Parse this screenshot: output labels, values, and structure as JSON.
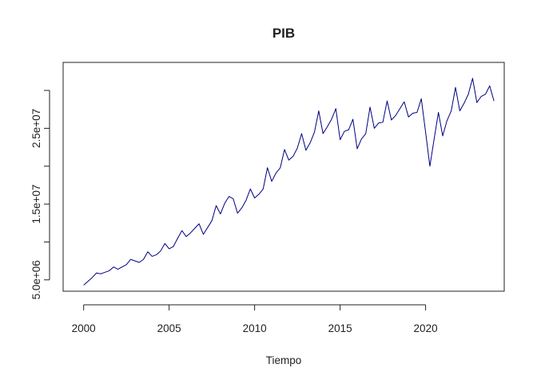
{
  "chart_data": {
    "type": "line",
    "title": "PIB",
    "xlabel": "Tiempo",
    "ylabel": "",
    "xlim": [
      1998.8,
      2024.6
    ],
    "ylim": [
      3500000,
      33700000
    ],
    "x_ticks": [
      2000,
      2005,
      2010,
      2015,
      2020
    ],
    "x_tick_labels": [
      "2000",
      "2005",
      "2010",
      "2015",
      "2020"
    ],
    "y_ticks": [
      5000000,
      15000000,
      25000000
    ],
    "y_tick_labels": [
      "5.0e+06",
      "1.5e+07",
      "2.5e+07"
    ],
    "y_minor_ticks": [
      10000000,
      20000000,
      30000000
    ],
    "grid": false,
    "line_color": "#000080",
    "series": [
      {
        "start_year": 2000,
        "frequency": "quarterly",
        "values": [
          4300000,
          4800000,
          5300000,
          5900000,
          5800000,
          6000000,
          6200000,
          6700000,
          6400000,
          6700000,
          7000000,
          7700000,
          7500000,
          7300000,
          7700000,
          8700000,
          8100000,
          8300000,
          8800000,
          9800000,
          9100000,
          9400000,
          10500000,
          11500000,
          10700000,
          11200000,
          11800000,
          12400000,
          11000000,
          11900000,
          12800000,
          14800000,
          13700000,
          15100000,
          16000000,
          15700000,
          13800000,
          14500000,
          15500000,
          17000000,
          15800000,
          16300000,
          17000000,
          19800000,
          18000000,
          19100000,
          19800000,
          22200000,
          20800000,
          21300000,
          22400000,
          24300000,
          22100000,
          23100000,
          24500000,
          27300000,
          24300000,
          25200000,
          26200000,
          27600000,
          23500000,
          24600000,
          24800000,
          26200000,
          22300000,
          23600000,
          24300000,
          27800000,
          25000000,
          25700000,
          25800000,
          28600000,
          26100000,
          26700000,
          27600000,
          28500000,
          26500000,
          27000000,
          27100000,
          28900000,
          24500000,
          20000000,
          23600000,
          27100000,
          24000000,
          26000000,
          27300000,
          30400000,
          27300000,
          28300000,
          29500000,
          31600000,
          28400000,
          29200000,
          29500000,
          30600000,
          28600000
        ]
      }
    ]
  }
}
